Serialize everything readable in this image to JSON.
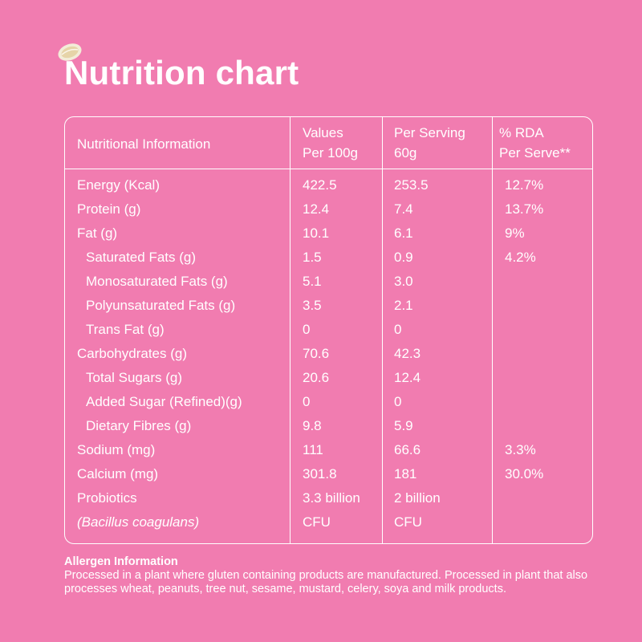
{
  "title": "Nutrition chart",
  "icon": "oat-flake-icon",
  "table": {
    "headers": [
      [
        "Nutritional Information"
      ],
      [
        "Values",
        "Per 100g"
      ],
      [
        "Per Serving",
        "60g"
      ],
      [
        "% RDA",
        "Per Serve**"
      ]
    ],
    "rows": [
      {
        "name": "Energy (Kcal)",
        "v1": "422.5",
        "v2": "253.5",
        "v3": "12.7%",
        "sub": false
      },
      {
        "name": "Protein (g)",
        "v1": "12.4",
        "v2": "7.4",
        "v3": "13.7%",
        "sub": false
      },
      {
        "name": "Fat (g)",
        "v1": "10.1",
        "v2": "6.1",
        "v3": "9%",
        "sub": false
      },
      {
        "name": "Saturated Fats (g)",
        "v1": "1.5",
        "v2": "0.9",
        "v3": "4.2%",
        "sub": true
      },
      {
        "name": "Monosaturated Fats (g)",
        "v1": "5.1",
        "v2": "3.0",
        "v3": "",
        "sub": true
      },
      {
        "name": "Polyunsaturated Fats (g)",
        "v1": "3.5",
        "v2": "2.1",
        "v3": "",
        "sub": true
      },
      {
        "name": "Trans Fat (g)",
        "v1": "0",
        "v2": "0",
        "v3": "",
        "sub": true
      },
      {
        "name": "Carbohydrates (g)",
        "v1": "70.6",
        "v2": "42.3",
        "v3": "",
        "sub": false
      },
      {
        "name": "Total Sugars (g)",
        "v1": "20.6",
        "v2": "12.4",
        "v3": "",
        "sub": true
      },
      {
        "name": "Added Sugar (Refined)(g)",
        "v1": "0",
        "v2": "0",
        "v3": "",
        "sub": true
      },
      {
        "name": "Dietary Fibres (g)",
        "v1": "9.8",
        "v2": "5.9",
        "v3": "",
        "sub": true
      },
      {
        "name": "Sodium (mg)",
        "v1": "111",
        "v2": "66.6",
        "v3": "3.3%",
        "sub": false
      },
      {
        "name": "Calcium (mg)",
        "v1": "301.8",
        "v2": "181",
        "v3": "30.0%",
        "sub": false
      },
      {
        "name": "Probiotics",
        "v1": "3.3 billion",
        "v2": "2 billion",
        "v3": "",
        "sub": false
      },
      {
        "name": "(Bacillus coagulans)",
        "v1": "CFU",
        "v2": "CFU",
        "v3": "",
        "sub": false,
        "italic": true
      }
    ]
  },
  "allergen": {
    "title": "Allergen Information",
    "text": "Processed in a plant where gluten containing products are manufactured. Processed in plant that also processes wheat, peanuts, tree nut, sesame, mustard, celery, soya and milk products."
  }
}
